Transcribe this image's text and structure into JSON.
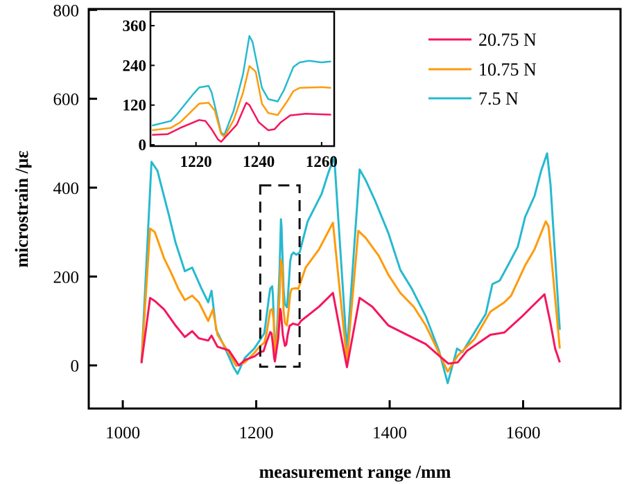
{
  "chart_data": {
    "type": "line",
    "title": "",
    "xlabel": "measurement range /mm",
    "ylabel": "microstrain /με",
    "xlim": [
      949,
      1746
    ],
    "ylim": [
      -97,
      802
    ],
    "xticks": [
      1000,
      1200,
      1400,
      1600
    ],
    "yticks": [
      0,
      200,
      400,
      600,
      800
    ],
    "grid": false,
    "legend": {
      "placement": "top-right",
      "entries": [
        "20.75 N",
        "10.75 N",
        "7.5 N"
      ]
    },
    "colors": {
      "20.75 N": "#f5155c",
      "10.75 N": "#ff9a0a",
      "7.5 N": "#27b9cf"
    },
    "zoom_box": {
      "x": [
        1206,
        1265
      ],
      "y": [
        -3,
        405
      ]
    },
    "series": [
      {
        "name": "20.75 N",
        "x": [
          1028,
          1041,
          1048,
          1062,
          1079,
          1093,
          1104,
          1114,
          1128,
          1133,
          1142,
          1159,
          1174,
          1183,
          1197,
          1206,
          1211,
          1215,
          1221,
          1223,
          1225,
          1227,
          1228,
          1230,
          1233,
          1236,
          1237,
          1240,
          1243,
          1245,
          1247,
          1250,
          1255,
          1263,
          1267,
          1294,
          1315,
          1336,
          1355,
          1374,
          1398,
          1426,
          1454,
          1474,
          1488,
          1502,
          1516,
          1551,
          1572,
          1599,
          1613,
          1632,
          1641,
          1648,
          1655
        ],
        "y": [
          5,
          152,
          145,
          126,
          90,
          64,
          77,
          61,
          56,
          67,
          42,
          34,
          0,
          12,
          20,
          30,
          32,
          51,
          75,
          72,
          47,
          16,
          9,
          30,
          61,
          127,
          120,
          68,
          44,
          47,
          68,
          89,
          94,
          91,
          100,
          132,
          163,
          -4,
          152,
          132,
          90,
          69,
          48,
          22,
          4,
          7,
          33,
          69,
          74,
          111,
          132,
          160,
          95,
          38,
          7
        ]
      },
      {
        "name": "10.75 N",
        "x": [
          1028,
          1041,
          1048,
          1062,
          1072,
          1083,
          1093,
          1104,
          1114,
          1128,
          1135,
          1142,
          1159,
          1170,
          1183,
          1197,
          1206,
          1212,
          1215,
          1221,
          1224,
          1226,
          1228,
          1229,
          1232,
          1235,
          1237,
          1239,
          1241,
          1243,
          1246,
          1249,
          1251,
          1253,
          1260,
          1263,
          1267,
          1274,
          1294,
          1315,
          1336,
          1353,
          1364,
          1384,
          1398,
          1416,
          1436,
          1454,
          1474,
          1487,
          1502,
          1527,
          1551,
          1572,
          1582,
          1603,
          1617,
          1634,
          1638,
          1655
        ],
        "y": [
          5,
          308,
          300,
          241,
          210,
          173,
          147,
          157,
          142,
          100,
          126,
          69,
          28,
          -1,
          7,
          28,
          44,
          51,
          68,
          124,
          127,
          103,
          33,
          24,
          75,
          158,
          238,
          221,
          124,
          96,
          90,
          131,
          162,
          172,
          174,
          172,
          189,
          220,
          261,
          321,
          9,
          303,
          287,
          246,
          204,
          163,
          132,
          90,
          28,
          -14,
          22,
          59,
          121,
          142,
          157,
          225,
          261,
          324,
          313,
          38
        ]
      },
      {
        "name": "7.5 N",
        "x": [
          1028,
          1043,
          1052,
          1060,
          1069,
          1079,
          1093,
          1104,
          1118,
          1128,
          1133,
          1140,
          1152,
          1166,
          1172,
          1183,
          1197,
          1206,
          1212,
          1214,
          1219,
          1221,
          1224,
          1225,
          1228,
          1229,
          1232,
          1235,
          1237,
          1238,
          1241,
          1243,
          1246,
          1248,
          1251,
          1253,
          1256,
          1260,
          1263,
          1265,
          1277,
          1298,
          1308,
          1317,
          1336,
          1355,
          1364,
          1378,
          1398,
          1416,
          1433,
          1454,
          1474,
          1487,
          1501,
          1509,
          1527,
          1544,
          1554,
          1565,
          1579,
          1592,
          1603,
          1617,
          1627,
          1636,
          1641,
          1655
        ],
        "y": [
          5,
          458,
          438,
          391,
          339,
          277,
          212,
          220,
          173,
          142,
          168,
          80,
          43,
          -4,
          -19,
          17,
          38,
          58,
          72,
          93,
          152,
          173,
          178,
          158,
          37,
          30,
          103,
          214,
          329,
          311,
          172,
          138,
          131,
          165,
          235,
          249,
          254,
          249,
          252,
          254,
          324,
          386,
          433,
          469,
          33,
          441,
          417,
          371,
          298,
          215,
          173,
          111,
          33,
          -40,
          38,
          30,
          74,
          116,
          183,
          191,
          230,
          267,
          334,
          381,
          438,
          477,
          407,
          80
        ]
      }
    ],
    "inset": {
      "xlim": [
        1205.5,
        1264
      ],
      "ylim": [
        -4,
        402
      ],
      "xticks": [
        1220,
        1240,
        1260
      ],
      "yticks": [
        0,
        120,
        240,
        360
      ]
    }
  }
}
